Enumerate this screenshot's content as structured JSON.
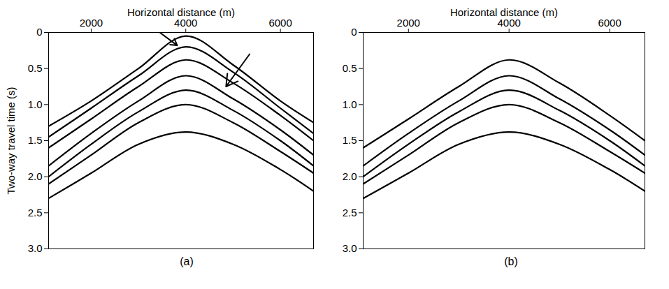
{
  "chart_data": [
    {
      "type": "line",
      "title": "(a)",
      "x_label": "Horizontal distance (m)",
      "y_label": "Two-way travel time (s)",
      "xlim": [
        1100,
        6700
      ],
      "xticks": [
        2000,
        4000,
        6000
      ],
      "ylim": [
        0,
        3
      ],
      "yticks": [
        0,
        0.5,
        {
          "value": 1,
          "label": "1.0"
        },
        1.5,
        {
          "value": 2,
          "label": "2.0"
        },
        2.5,
        {
          "value": 3,
          "label": "3.0"
        }
      ],
      "x": [
        1100,
        2000,
        3000,
        4000,
        5000,
        6000,
        6700
      ],
      "series": [
        {
          "color": "#000000",
          "values": [
            1.3,
            0.95,
            0.5,
            0.05,
            0.45,
            0.95,
            1.25
          ]
        },
        {
          "color": "#000000",
          "values": [
            1.45,
            1.05,
            0.6,
            0.2,
            0.55,
            1.05,
            1.4
          ]
        },
        {
          "color": "#000000",
          "values": [
            1.6,
            1.2,
            0.75,
            0.38,
            0.7,
            1.15,
            1.5
          ]
        },
        {
          "color": "#000000",
          "values": [
            1.85,
            1.4,
            0.95,
            0.6,
            0.92,
            1.35,
            1.7
          ]
        },
        {
          "color": "#000000",
          "values": [
            2.0,
            1.55,
            1.1,
            0.8,
            1.08,
            1.5,
            1.85
          ]
        },
        {
          "color": "#000000",
          "values": [
            2.1,
            1.7,
            1.25,
            1.0,
            1.25,
            1.65,
            1.95
          ]
        },
        {
          "color": "#000000",
          "values": [
            2.3,
            1.95,
            1.55,
            1.38,
            1.55,
            1.9,
            2.2
          ]
        }
      ],
      "arrows": [
        {
          "x1": 3450,
          "y1": 0.0,
          "x2": 3820,
          "y2": 0.18
        },
        {
          "x1": 5350,
          "y1": 0.3,
          "x2": 4850,
          "y2": 0.75
        }
      ]
    },
    {
      "type": "line",
      "title": "(b)",
      "x_label": "Horizontal distance (m)",
      "xlim": [
        1100,
        6700
      ],
      "xticks": [
        2000,
        4000,
        6000
      ],
      "ylim": [
        0,
        3
      ],
      "yticks": [
        0,
        0.5,
        {
          "value": 1,
          "label": "1.0"
        },
        1.5,
        {
          "value": 2,
          "label": "2.0"
        },
        2.5,
        {
          "value": 3,
          "label": "3.0"
        }
      ],
      "x": [
        1100,
        2000,
        3000,
        4000,
        5000,
        6000,
        6700
      ],
      "series": [
        {
          "color": "#000000",
          "values": [
            1.6,
            1.2,
            0.75,
            0.38,
            0.7,
            1.15,
            1.5
          ]
        },
        {
          "color": "#000000",
          "values": [
            1.85,
            1.4,
            0.95,
            0.6,
            0.92,
            1.35,
            1.7
          ]
        },
        {
          "color": "#000000",
          "values": [
            2.0,
            1.55,
            1.1,
            0.8,
            1.08,
            1.5,
            1.85
          ]
        },
        {
          "color": "#000000",
          "values": [
            2.1,
            1.7,
            1.25,
            1.0,
            1.25,
            1.65,
            1.95
          ]
        },
        {
          "color": "#000000",
          "values": [
            2.3,
            1.95,
            1.55,
            1.38,
            1.55,
            1.9,
            2.2
          ]
        }
      ]
    }
  ]
}
